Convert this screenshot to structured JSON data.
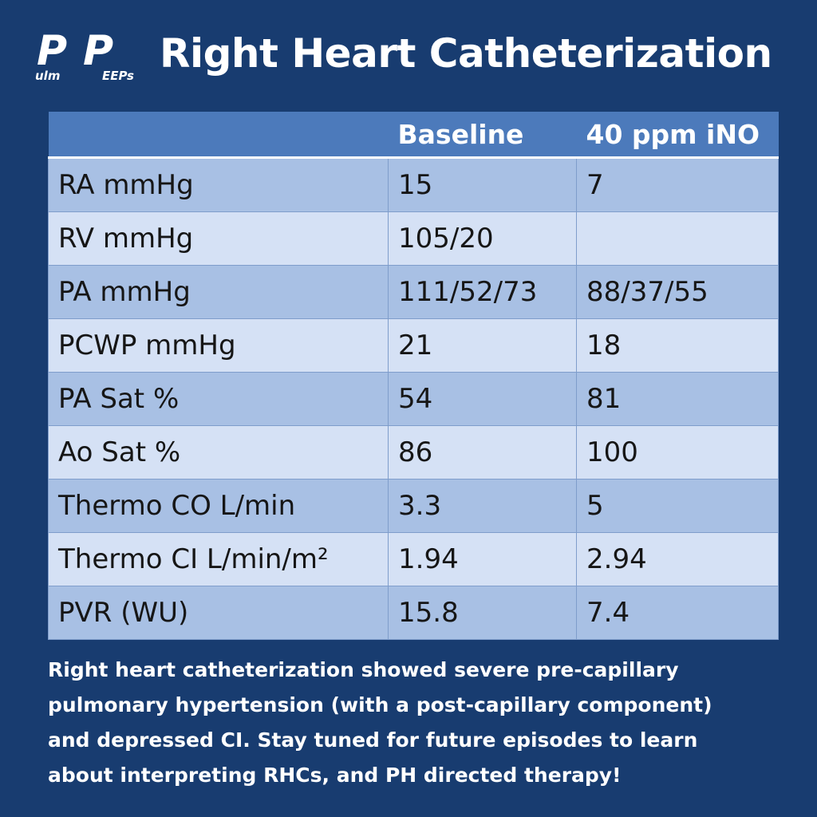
{
  "logo": {
    "parts": [
      "P",
      "ulm",
      "P",
      "EEPs"
    ]
  },
  "title": "Right Heart Catheterization",
  "table": {
    "columns": [
      "Baseline",
      "40 ppm iNO"
    ],
    "rows": [
      [
        "RA mmHg",
        "15",
        "7"
      ],
      [
        "RV mmHg",
        "105/20",
        null
      ],
      [
        "PA mmHg",
        "111/52/73",
        "88/37/55"
      ],
      [
        "PCWP mmHg",
        "21",
        "18"
      ],
      [
        "PA Sat %",
        "54",
        "81"
      ],
      [
        "Ao Sat %",
        "86",
        "100"
      ],
      [
        "Thermo CO L/min",
        "3.3",
        "5"
      ],
      [
        "Thermo CI L/min/m²",
        "1.94",
        "2.94"
      ],
      [
        "PVR (WU)",
        "15.8",
        "7.4"
      ]
    ]
  },
  "caption": [
    "Right heart catheterization showed severe pre-capillary",
    "pulmonary hypertension (with a post-capillary component)",
    "and depressed CI. Stay tuned for future episodes to learn",
    "about interpreting RHCs, and PH directed therapy!"
  ]
}
